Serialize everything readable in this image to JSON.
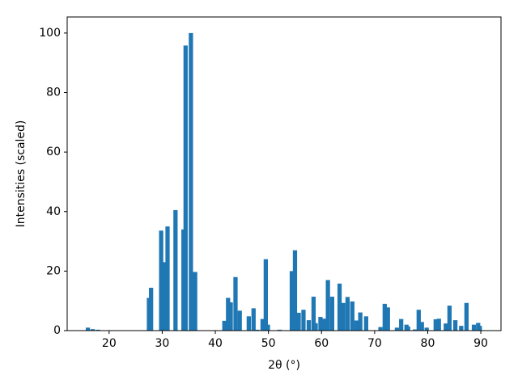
{
  "chart_data": {
    "type": "bar",
    "xlabel": "2θ (°)",
    "ylabel": "Intensities (scaled)",
    "color": "#1f77b4",
    "x": [
      16.0,
      16.9,
      17.9,
      27.5,
      27.9,
      29.8,
      30.5,
      31.0,
      32.5,
      34.0,
      34.4,
      35.4,
      36.2,
      41.7,
      42.4,
      42.9,
      43.8,
      44.6,
      46.3,
      47.2,
      47.9,
      48.9,
      49.5,
      49.9,
      52.1,
      54.4,
      55.0,
      55.7,
      56.6,
      57.6,
      58.5,
      58.9,
      59.8,
      60.5,
      61.2,
      62.0,
      63.4,
      64.1,
      64.9,
      65.8,
      66.6,
      67.3,
      68.4,
      71.1,
      71.9,
      72.5,
      74.2,
      75.0,
      76.0,
      76.3,
      77.6,
      78.3,
      78.9,
      79.8,
      81.5,
      82.1,
      83.4,
      84.1,
      85.2,
      86.3,
      87.3,
      88.7,
      89.5,
      89.8
    ],
    "values": [
      1.0,
      0.5,
      0.3,
      11.0,
      14.4,
      33.6,
      23.0,
      35.0,
      40.5,
      34.0,
      95.8,
      100.0,
      19.7,
      3.3,
      11.0,
      9.5,
      18.0,
      6.7,
      4.8,
      7.5,
      0.3,
      3.9,
      24.0,
      2.0,
      0.3,
      20.0,
      27.0,
      6.0,
      7.0,
      3.5,
      11.4,
      2.5,
      4.6,
      4.0,
      17.0,
      11.4,
      15.8,
      9.3,
      11.3,
      9.8,
      3.4,
      6.1,
      4.8,
      1.2,
      9.0,
      7.8,
      1.0,
      3.9,
      2.0,
      1.4,
      0.4,
      7.0,
      2.9,
      1.0,
      3.8,
      4.0,
      2.4,
      8.4,
      3.5,
      1.6,
      9.3,
      2.0,
      2.6,
      1.6
    ],
    "xlim": [
      12.1,
      93.8
    ],
    "xticks": [
      20,
      30,
      40,
      50,
      60,
      70,
      80,
      90
    ],
    "ylim": [
      0,
      105.4
    ],
    "yticks": [
      0,
      20,
      40,
      60,
      80,
      100
    ]
  }
}
